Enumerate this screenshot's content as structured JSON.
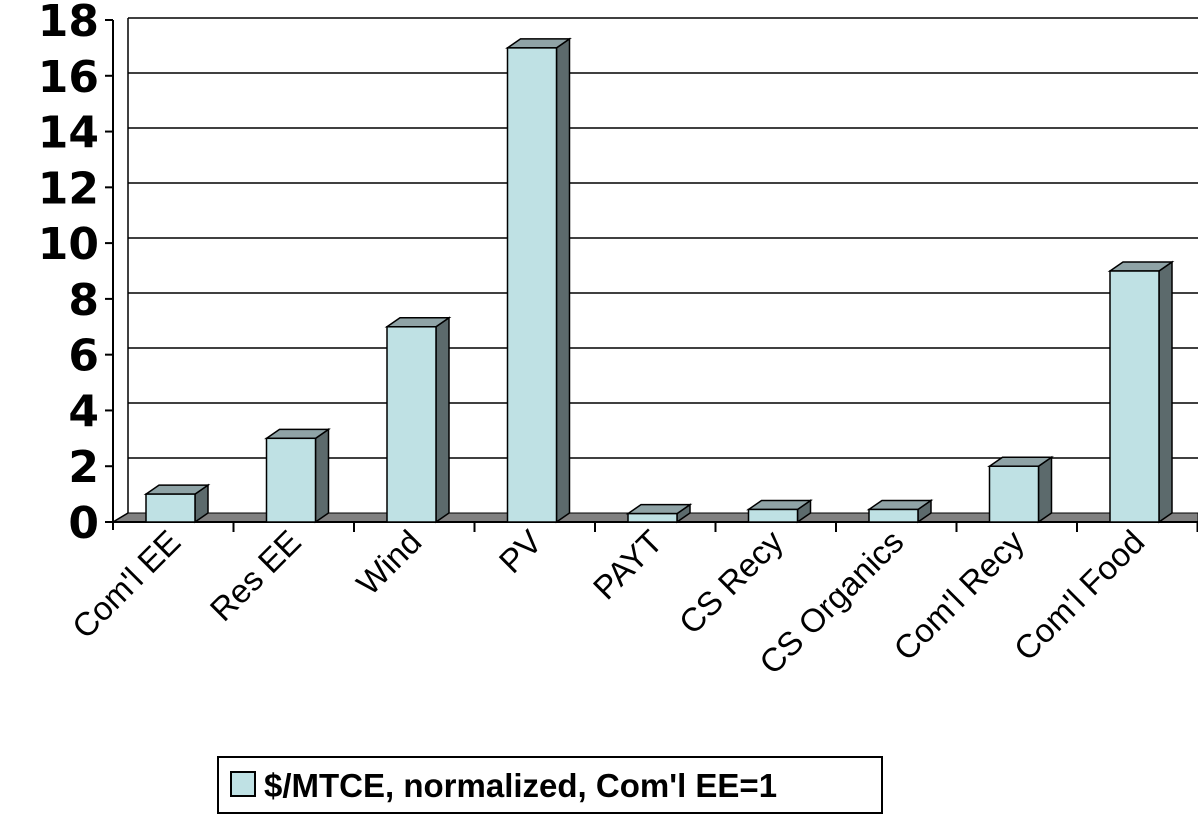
{
  "chart_data": {
    "type": "bar",
    "style": "3d-column",
    "categories": [
      "Com'l EE",
      "Res EE",
      "Wind",
      "PV",
      "PAYT",
      "CS Recy",
      "CS Organics",
      "Com'l Recy",
      "Com'l Food"
    ],
    "series": [
      {
        "name": "$/MTCE, normalized, Com'l EE=1",
        "values": [
          1,
          3,
          7,
          17,
          0.3,
          0.45,
          0.45,
          2,
          9
        ]
      }
    ],
    "ylim": [
      0,
      18
    ],
    "yticks": [
      0,
      2,
      4,
      6,
      8,
      10,
      12,
      14,
      16,
      18
    ],
    "grid": true,
    "legend_position": "bottom",
    "colors": {
      "bar_front": "#bfe1e4",
      "bar_top": "#8fa3a6",
      "bar_side": "#5c6a6c",
      "floor": "#808080",
      "gridline": "#000000"
    }
  }
}
